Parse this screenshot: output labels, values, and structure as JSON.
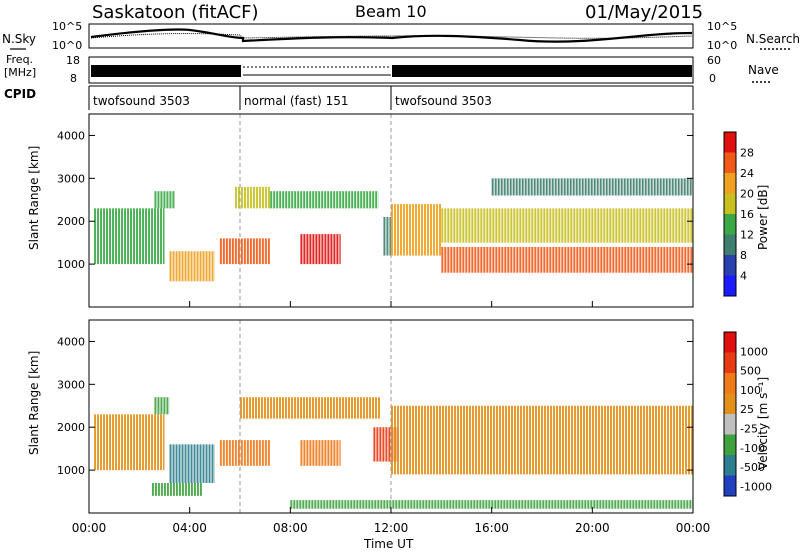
{
  "header": {
    "station": "Saskatoon (fitACF)",
    "beam": "Beam 10",
    "date": "01/May/2015"
  },
  "left_labels": {
    "nsky": "N.Sky",
    "freq_line1": "Freq.",
    "freq_line2": "[MHz]",
    "cpid": "CPID"
  },
  "right_labels": {
    "nsearch": "N.Search",
    "nave": "Nave"
  },
  "noise_panel": {
    "left_ticks": [
      "10^5",
      "10^0"
    ],
    "right_ticks": [
      "10^5",
      "10^0"
    ]
  },
  "freq_panel": {
    "left_ticks": [
      "18",
      "8"
    ],
    "right_ticks": [
      "60",
      "0"
    ]
  },
  "cpid_segments": [
    {
      "label": "twofsound 3503",
      "start_h": 0,
      "end_h": 6
    },
    {
      "label": "normal (fast) 151",
      "start_h": 6,
      "end_h": 12
    },
    {
      "label": "twofsound 3503",
      "start_h": 12,
      "end_h": 24
    }
  ],
  "x_axis": {
    "ticks": [
      "00:00",
      "04:00",
      "08:00",
      "12:00",
      "16:00",
      "20:00",
      "00:00"
    ],
    "label": "Time UT"
  },
  "power_panel": {
    "ylabel": "Slant Range [km]",
    "yticks": [
      "4000",
      "3000",
      "2000",
      "1000"
    ],
    "colorbar_label": "Power [dB]",
    "colorbar_ticks": [
      "28",
      "24",
      "20",
      "16",
      "12",
      "8",
      "4"
    ],
    "colors": [
      "#1c1cff",
      "#2a3fb0",
      "#3f7f6e",
      "#39a845",
      "#c8c020",
      "#f0a020",
      "#f05a18",
      "#e01010"
    ]
  },
  "velocity_panel": {
    "ylabel": "Slant Range [km]",
    "yticks": [
      "4000",
      "3000",
      "2000",
      "1000"
    ],
    "colorbar_label": "Velocity [m s⁻¹]",
    "colorbar_ticks": [
      "1000",
      "500",
      "100",
      "25",
      "-25",
      "-100",
      "-500",
      "-1000"
    ],
    "colors": [
      "#2040c0",
      "#2d7f8f",
      "#3fa23f",
      "#c0c0c0",
      "#e2901a",
      "#ee7a1a",
      "#e83a14",
      "#e01010"
    ]
  },
  "chart_data": {
    "type": "heatmap",
    "title": "Saskatoon (fitACF)",
    "xlabel": "Time UT",
    "ylabel": "Slant Range [km]",
    "x_range_h": [
      0,
      24
    ],
    "y_range_km": [
      0,
      4500
    ],
    "panels": [
      {
        "name": "Power [dB]",
        "colorbar_range": [
          0,
          32
        ],
        "regions": [
          {
            "t_start": 0.2,
            "t_end": 3.0,
            "r_low": 1000,
            "r_high": 2300,
            "value": 14
          },
          {
            "t_start": 2.6,
            "t_end": 3.4,
            "r_low": 2300,
            "r_high": 2700,
            "value": 12
          },
          {
            "t_start": 3.2,
            "t_end": 5.0,
            "r_low": 600,
            "r_high": 1300,
            "value": 22
          },
          {
            "t_start": 5.2,
            "t_end": 7.2,
            "r_low": 1000,
            "r_high": 1600,
            "value": 24
          },
          {
            "t_start": 5.8,
            "t_end": 7.2,
            "r_low": 2300,
            "r_high": 2800,
            "value": 18
          },
          {
            "t_start": 8.4,
            "t_end": 10.0,
            "r_low": 1000,
            "r_high": 1700,
            "value": 28
          },
          {
            "t_start": 7.2,
            "t_end": 11.5,
            "r_low": 2300,
            "r_high": 2700,
            "value": 14
          },
          {
            "t_start": 11.7,
            "t_end": 12.0,
            "r_low": 1200,
            "r_high": 2100,
            "value": 10
          },
          {
            "t_start": 12.0,
            "t_end": 14.0,
            "r_low": 1200,
            "r_high": 2400,
            "value": 22
          },
          {
            "t_start": 14.0,
            "t_end": 24.0,
            "r_low": 800,
            "r_high": 1400,
            "value": 24
          },
          {
            "t_start": 14.0,
            "t_end": 24.0,
            "r_low": 1500,
            "r_high": 2300,
            "value": 16
          },
          {
            "t_start": 16.0,
            "t_end": 24.0,
            "r_low": 2600,
            "r_high": 3000,
            "value": 8
          }
        ]
      },
      {
        "name": "Velocity [m s⁻¹]",
        "colorbar_range": [
          -1000,
          1000
        ],
        "regions": [
          {
            "t_start": 0.2,
            "t_end": 3.0,
            "r_low": 1000,
            "r_high": 2300,
            "value": 0
          },
          {
            "t_start": 2.6,
            "t_end": 3.2,
            "r_low": 2300,
            "r_high": 2700,
            "value": 100
          },
          {
            "t_start": 3.2,
            "t_end": 5.0,
            "r_low": 700,
            "r_high": 1600,
            "value": 500
          },
          {
            "t_start": 5.2,
            "t_end": 7.2,
            "r_low": 1100,
            "r_high": 1700,
            "value": -100
          },
          {
            "t_start": 6.0,
            "t_end": 11.6,
            "r_low": 2200,
            "r_high": 2700,
            "value": 0
          },
          {
            "t_start": 8.4,
            "t_end": 10.0,
            "r_low": 1100,
            "r_high": 1700,
            "value": -100
          },
          {
            "t_start": 11.3,
            "t_end": 12.3,
            "r_low": 1200,
            "r_high": 2000,
            "value": -500
          },
          {
            "t_start": 12.0,
            "t_end": 24.0,
            "r_low": 900,
            "r_high": 2500,
            "value": 0
          },
          {
            "t_start": 2.5,
            "t_end": 4.5,
            "r_low": 400,
            "r_high": 700,
            "value": 100
          },
          {
            "t_start": 8.0,
            "t_end": 24.0,
            "r_low": 100,
            "r_high": 300,
            "value": 100
          }
        ]
      }
    ]
  }
}
